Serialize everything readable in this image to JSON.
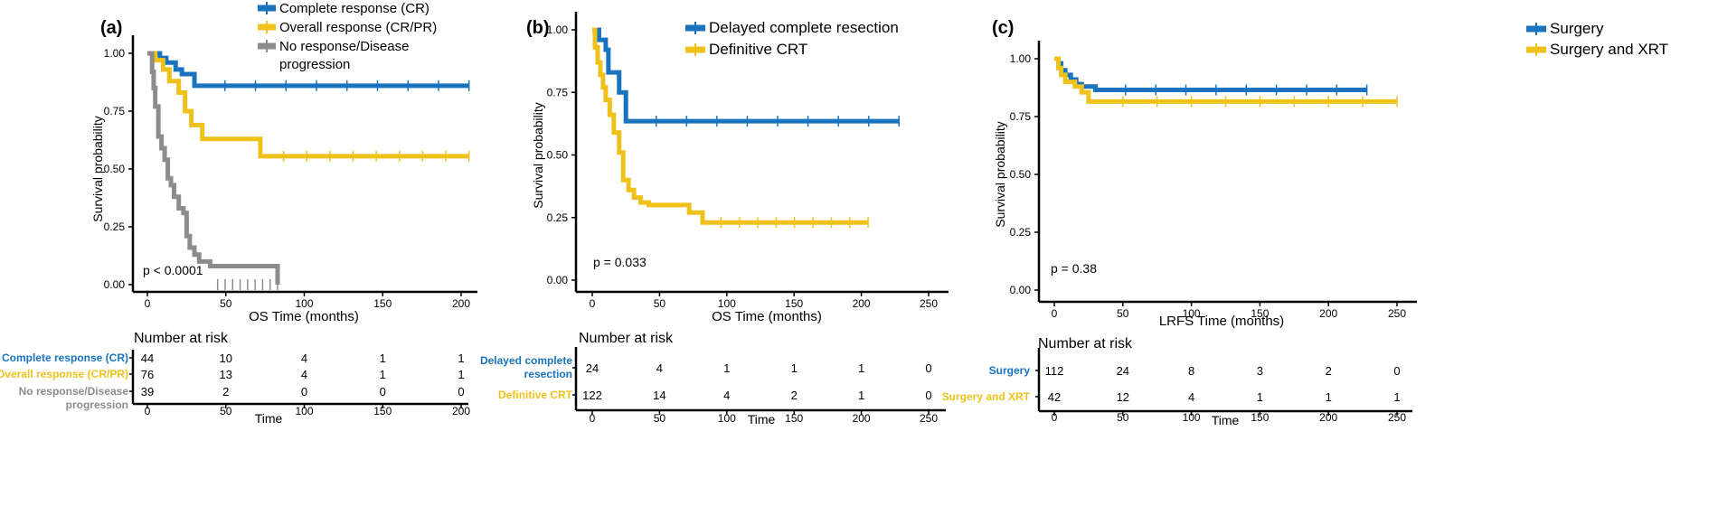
{
  "colors": {
    "blue": "#1a73be",
    "yellow": "#eec21b",
    "gray": "#8c8c8c"
  },
  "chart_data": [
    {
      "type": "line",
      "panel_label": "(a)",
      "title": "",
      "xlabel": "OS Time (months)",
      "ylabel": "Survival probability",
      "xlim": [
        0,
        200
      ],
      "ylim": [
        0,
        1
      ],
      "xticks": [
        "0",
        "50",
        "100",
        "150",
        "200"
      ],
      "yticks": [
        "0.00",
        "0.25",
        "0.50",
        "0.75",
        "1.00"
      ],
      "pvalue": "p < 0.0001",
      "legend": [
        "Complete response (CR)",
        "Overall response (CR/PR)",
        "No response/Disease progression"
      ],
      "series": [
        {
          "name": "Complete response (CR)",
          "color": "blue",
          "x": [
            0,
            8,
            12,
            18,
            22,
            30,
            205
          ],
          "y": [
            1.0,
            0.98,
            0.96,
            0.93,
            0.91,
            0.86,
            0.86
          ]
        },
        {
          "name": "Overall response (CR/PR)",
          "color": "yellow",
          "x": [
            0,
            5,
            10,
            14,
            20,
            24,
            28,
            35,
            72,
            205
          ],
          "y": [
            1.0,
            0.97,
            0.93,
            0.88,
            0.83,
            0.75,
            0.69,
            0.63,
            0.555,
            0.555
          ]
        },
        {
          "name": "No response/Disease progression",
          "color": "gray",
          "x": [
            0,
            3,
            4,
            5,
            7,
            9,
            11,
            13,
            15,
            17,
            20,
            23,
            25,
            27,
            30,
            33,
            40,
            83
          ],
          "y": [
            1.0,
            0.92,
            0.85,
            0.77,
            0.64,
            0.59,
            0.54,
            0.46,
            0.43,
            0.38,
            0.33,
            0.31,
            0.21,
            0.16,
            0.13,
            0.1,
            0.08,
            0.0
          ]
        }
      ],
      "risk_table": {
        "title": "Number at risk",
        "xlabel": "Time",
        "labels": [
          "Complete response (CR)",
          "Overall response (CR/PR)",
          "No response/Disease progression"
        ],
        "rows": [
          [
            "44",
            "10",
            "4",
            "1",
            "1"
          ],
          [
            "76",
            "13",
            "4",
            "1",
            "1"
          ],
          [
            "39",
            "2",
            "0",
            "0",
            "0"
          ]
        ]
      }
    },
    {
      "type": "line",
      "panel_label": "(b)",
      "title": "",
      "xlabel": "OS Time (months)",
      "ylabel": "Survival probability",
      "xlim": [
        0,
        250
      ],
      "ylim": [
        0,
        1
      ],
      "xticks": [
        "0",
        "50",
        "100",
        "150",
        "200",
        "250"
      ],
      "yticks": [
        "0.00",
        "0.25",
        "0.50",
        "0.75",
        "1.00"
      ],
      "pvalue": "p = 0.033",
      "legend": [
        "Delayed complete resection",
        "Definitive CRT"
      ],
      "series": [
        {
          "name": "Delayed complete resection",
          "color": "blue",
          "x": [
            0,
            5,
            10,
            12,
            20,
            25,
            228
          ],
          "y": [
            1.0,
            0.96,
            0.92,
            0.83,
            0.75,
            0.635,
            0.635
          ]
        },
        {
          "name": "Definitive CRT",
          "color": "yellow",
          "x": [
            0,
            2,
            4,
            6,
            8,
            10,
            13,
            16,
            20,
            23,
            27,
            31,
            36,
            42,
            50,
            72,
            82,
            205
          ],
          "y": [
            1.0,
            0.93,
            0.87,
            0.82,
            0.77,
            0.72,
            0.66,
            0.59,
            0.51,
            0.4,
            0.36,
            0.33,
            0.31,
            0.3,
            0.3,
            0.27,
            0.23,
            0.23
          ]
        }
      ],
      "risk_table": {
        "title": "Number at risk",
        "xlabel": "Time",
        "labels": [
          "Delayed complete resection",
          "Definitive CRT"
        ],
        "rows": [
          [
            "24",
            "4",
            "1",
            "1",
            "1",
            "0"
          ],
          [
            "122",
            "14",
            "4",
            "2",
            "1",
            "0"
          ]
        ]
      }
    },
    {
      "type": "line",
      "panel_label": "(c)",
      "title": "",
      "xlabel": "LRFS Time (months)",
      "ylabel": "Survival probability",
      "xlim": [
        0,
        250
      ],
      "ylim": [
        0,
        1
      ],
      "xticks": [
        "0",
        "50",
        "100",
        "150",
        "200",
        "250"
      ],
      "yticks": [
        "0.00",
        "0.25",
        "0.50",
        "0.75",
        "1.00"
      ],
      "pvalue": "p = 0.38",
      "legend": [
        "Surgery",
        "Surgery and XRT"
      ],
      "series": [
        {
          "name": "Surgery",
          "color": "blue",
          "x": [
            0,
            3,
            5,
            8,
            12,
            16,
            20,
            30,
            228
          ],
          "y": [
            1.0,
            0.98,
            0.95,
            0.93,
            0.91,
            0.89,
            0.88,
            0.865,
            0.865
          ]
        },
        {
          "name": "Surgery and XRT",
          "color": "yellow",
          "x": [
            0,
            3,
            5,
            8,
            15,
            20,
            25,
            250
          ],
          "y": [
            1.0,
            0.96,
            0.93,
            0.9,
            0.88,
            0.855,
            0.815,
            0.815
          ]
        }
      ],
      "risk_table": {
        "title": "Number at risk",
        "xlabel": "Time",
        "labels": [
          "Surgery",
          "Surgery and XRT"
        ],
        "rows": [
          [
            "112",
            "24",
            "8",
            "3",
            "2",
            "0"
          ],
          [
            "42",
            "12",
            "4",
            "1",
            "1",
            "1"
          ]
        ]
      }
    }
  ]
}
